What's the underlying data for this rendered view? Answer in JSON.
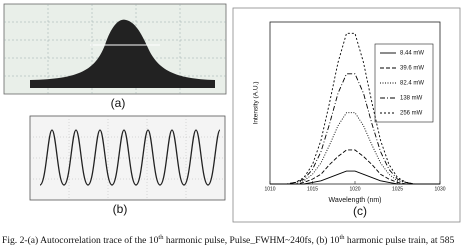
{
  "figure": {
    "labels": [
      "(a)",
      "(b)",
      "(c)"
    ],
    "caption": [
      "Fig. 2-(a) Autocorrelation trace of the 10",
      "th",
      " harmonic pulse, Pulse_FWHM~240fs, (b) 10",
      "th",
      " harmonic pulse train, at 585"
    ]
  },
  "chart_data": {
    "type": "line",
    "xlabel": "Wavelength (nm)",
    "ylabel": "Intensity (A.U.)",
    "x": [
      1010,
      1011,
      1012,
      1013,
      1014,
      1015,
      1016,
      1017,
      1018,
      1019,
      1020,
      1021,
      1022,
      1023,
      1024,
      1025,
      1026,
      1027,
      1028,
      1029,
      1030
    ],
    "xlim": [
      1010,
      1030
    ],
    "xticks": [
      1010,
      1015,
      1020,
      1025,
      1030
    ],
    "ylim": [
      0,
      1
    ],
    "series": [
      {
        "name": "8.44 mW",
        "color": "#000000",
        "dash": "none",
        "values": [
          0,
          0,
          0,
          0,
          0,
          0.01,
          0.02,
          0.04,
          0.06,
          0.08,
          0.08,
          0.06,
          0.04,
          0.02,
          0.01,
          0,
          0,
          0,
          0,
          0,
          0
        ]
      },
      {
        "name": "39.6 mW",
        "color": "#000000",
        "dash": "4,2",
        "values": [
          0,
          0,
          0,
          0,
          0.01,
          0.03,
          0.06,
          0.12,
          0.17,
          0.21,
          0.21,
          0.17,
          0.12,
          0.06,
          0.03,
          0.01,
          0,
          0,
          0,
          0,
          0
        ]
      },
      {
        "name": "82.4 mW",
        "color": "#000000",
        "dash": "1,1.5",
        "values": [
          0,
          0,
          0,
          0.01,
          0.02,
          0.06,
          0.13,
          0.24,
          0.36,
          0.44,
          0.44,
          0.36,
          0.24,
          0.13,
          0.06,
          0.02,
          0.01,
          0,
          0,
          0,
          0
        ]
      },
      {
        "name": "138 mW",
        "color": "#000000",
        "dash": "5,2,1,2",
        "values": [
          0,
          0,
          0,
          0.01,
          0.03,
          0.09,
          0.2,
          0.37,
          0.56,
          0.68,
          0.68,
          0.56,
          0.37,
          0.2,
          0.09,
          0.03,
          0.01,
          0,
          0,
          0,
          0
        ]
      },
      {
        "name": "256 mW",
        "color": "#000000",
        "dash": "2,2",
        "values": [
          0,
          0,
          0,
          0.01,
          0.04,
          0.12,
          0.27,
          0.5,
          0.75,
          0.93,
          0.93,
          0.75,
          0.5,
          0.27,
          0.12,
          0.04,
          0.01,
          0,
          0,
          0,
          0
        ]
      }
    ]
  }
}
